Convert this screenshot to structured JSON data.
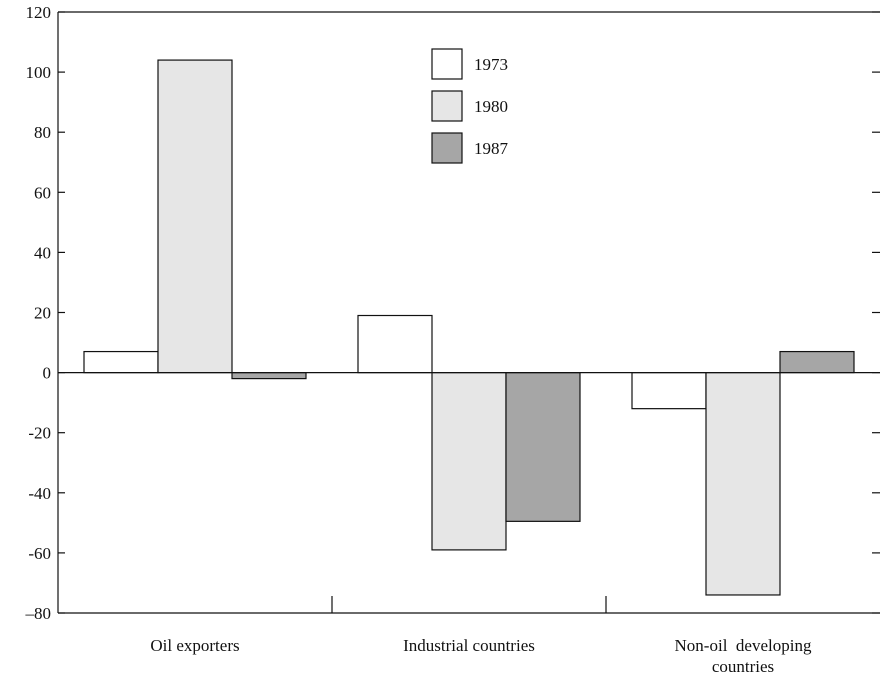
{
  "chart_data": {
    "type": "bar",
    "categories": [
      [
        "Oil exporters"
      ],
      [
        "Industrial countries"
      ],
      [
        "Non-oil  developing",
        "countries"
      ]
    ],
    "series": [
      {
        "name": "1973",
        "values": [
          7,
          19,
          -12
        ],
        "color": "#ffffff"
      },
      {
        "name": "1980",
        "values": [
          104,
          -59,
          -74
        ],
        "color": "#e6e6e6"
      },
      {
        "name": "1987",
        "values": [
          -2,
          -49.5,
          7
        ],
        "color": "#a6a6a6"
      }
    ],
    "ylim": [
      -80,
      120
    ],
    "yticks": [
      -80,
      -60,
      -40,
      -20,
      0,
      20,
      40,
      60,
      80,
      100,
      120
    ],
    "ytick_labels": [
      "–80",
      "-60",
      "-40",
      "-20",
      "0",
      "20",
      "40",
      "60",
      "80",
      "100",
      "120"
    ],
    "legend_position": "top-center",
    "grid": false
  }
}
